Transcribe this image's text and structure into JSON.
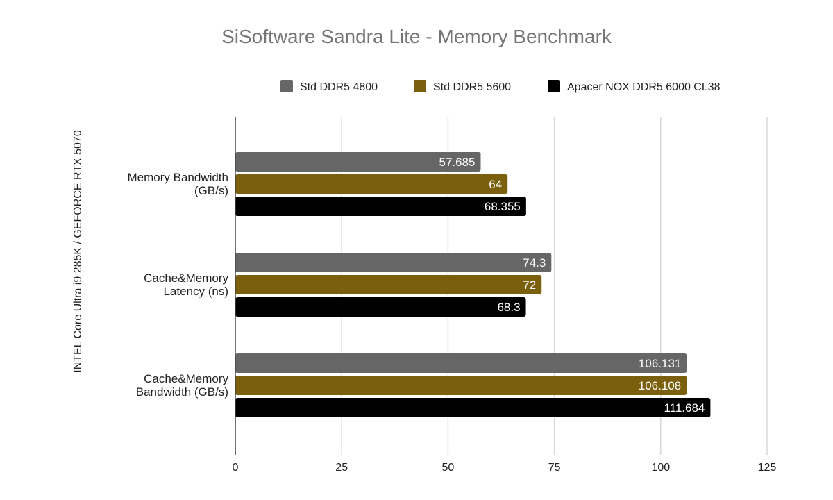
{
  "chart_data": {
    "type": "bar",
    "orientation": "horizontal",
    "title": "SiSoftware Sandra Lite - Memory Benchmark",
    "ylabel": "INTEL Core Ultra i9 285K / GEFORCE RTX 5070",
    "xlabel": "",
    "xlim": [
      0,
      125
    ],
    "xticks": [
      0,
      25,
      50,
      75,
      100,
      125
    ],
    "grid": true,
    "legend_position": "top-right",
    "categories": [
      [
        "Memory Bandwidth",
        "(GB/s)"
      ],
      [
        "Cache&Memory",
        "Latency (ns)"
      ],
      [
        "Cache&Memory",
        "Bandwidth (GB/s)"
      ]
    ],
    "series": [
      {
        "name": "Std DDR5 4800",
        "color": "#666666",
        "values": [
          57.685,
          74.3,
          106.131
        ],
        "labels": [
          "57.685",
          "74.3",
          "106.131"
        ]
      },
      {
        "name": "Std DDR5 5600",
        "color": "#7a5f0c",
        "values": [
          64,
          72,
          106.108
        ],
        "labels": [
          "64",
          "72",
          "106.108"
        ]
      },
      {
        "name": "Apacer NOX DDR5 6000 CL38",
        "color": "#000000",
        "values": [
          68.355,
          68.3,
          111.684
        ],
        "labels": [
          "68.355",
          "68.3",
          "111.684"
        ]
      }
    ]
  }
}
